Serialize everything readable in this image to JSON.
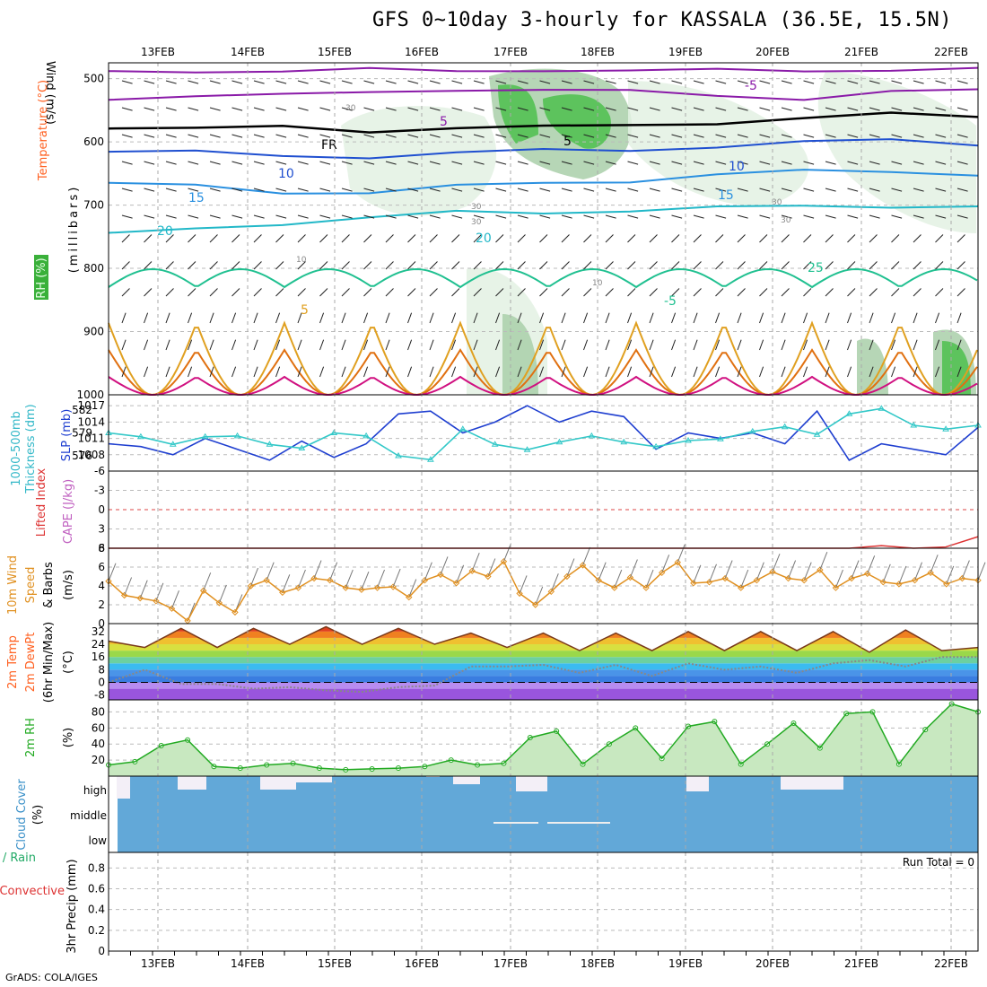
{
  "title": "GFS 0~10day 3-hourly for KASSALA (36.5E, 15.5N)",
  "credit": "GrADS: COLA/IGES",
  "dates": [
    "13FEB",
    "14FEB",
    "15FEB",
    "16FEB",
    "17FEB",
    "18FEB",
    "19FEB",
    "20FEB",
    "21FEB",
    "22FEB"
  ],
  "colors": {
    "rh_light": "#e3f1e3",
    "rh_mid": "#a9cfa9",
    "rh_green": "#4dc04d",
    "slp": "#1f3fd0",
    "thick": "#33c8c8",
    "wind_speed": "#e09020",
    "temp_curve": "#7a3a1a",
    "rh2m": "#22aa22",
    "cloud": "#62a8d8",
    "lifted": "#dd3333"
  },
  "chart_data": [
    {
      "type": "contour",
      "panel": "upper-air",
      "ylabel": "(millibars)",
      "yticks": [
        500,
        600,
        700,
        800,
        900,
        1000
      ],
      "left_labels": [
        "Wind (m/s)",
        "Temperature (°C)",
        "RH (%)"
      ],
      "isotherm_labels": [
        "-5",
        "5",
        "FR",
        "5",
        "10",
        "10",
        "15",
        "15",
        "20",
        "20",
        "25"
      ],
      "rh_labels": [
        "30",
        "30",
        "30",
        "30",
        "10",
        "10",
        "30"
      ],
      "isotherms": [
        {
          "name": "-5",
          "level_p": [
            488,
            486,
            490,
            487,
            486,
            485,
            490,
            487,
            485,
            486,
            487
          ],
          "color": "#8a1aa8"
        },
        {
          "name": "5b",
          "level_p": [
            530,
            526,
            528,
            522,
            515,
            518,
            522,
            526,
            530,
            522,
            520
          ],
          "color": "#8a1aa8"
        },
        {
          "name": "FR",
          "level_p": [
            575,
            580,
            578,
            582,
            576,
            578,
            575,
            568,
            562,
            558,
            560
          ],
          "color": "#000000"
        },
        {
          "name": "5",
          "level_p": [
            615,
            618,
            622,
            622,
            618,
            615,
            612,
            606,
            602,
            598,
            602
          ],
          "color": "#1f4fd0"
        },
        {
          "name": "10",
          "level_p": [
            668,
            670,
            678,
            680,
            672,
            665,
            660,
            652,
            648,
            646,
            650
          ],
          "color": "#2a90e0"
        },
        {
          "name": "15",
          "level_p": [
            748,
            735,
            728,
            722,
            712,
            710,
            708,
            706,
            702,
            700,
            702
          ],
          "color": "#22b8c8"
        }
      ]
    },
    {
      "type": "line",
      "panel": "slp-thickness",
      "left_labels": [
        "1000-500mb",
        "Thickness (dm)"
      ],
      "right_labels": [
        "SLP (mb)"
      ],
      "y1ticks": [
        "576",
        "579",
        "582"
      ],
      "y2ticks": [
        "1008",
        "1011",
        "1014",
        "1017"
      ],
      "series": [
        {
          "name": "SLP",
          "y": [
            1010,
            1009.5,
            1008,
            1011,
            1009,
            1007,
            1010.5,
            1007.5,
            1010,
            1015.5,
            1016,
            1012,
            1014,
            1017,
            1014,
            1016,
            1015,
            1009,
            1012,
            1011,
            1012,
            1010,
            1016,
            1007,
            1010,
            1009,
            1008,
            1013
          ]
        },
        {
          "name": "Thickness",
          "y": [
            579,
            578.5,
            577.5,
            578.5,
            578.6,
            577.5,
            577,
            579,
            578.6,
            576,
            575.5,
            579.5,
            577.5,
            576.8,
            577.8,
            578.6,
            577.8,
            577.2,
            578,
            578.2,
            579.2,
            579.8,
            578.8,
            581.5,
            582.2,
            580,
            579.5,
            580
          ]
        }
      ]
    },
    {
      "type": "line",
      "panel": "instability",
      "left_labels": [
        "Lifted Index",
        "CAPE (J/kg)"
      ],
      "yticks": [
        "-6",
        "-3",
        "0",
        "3",
        "6"
      ],
      "series": [
        {
          "name": "Lifted Index",
          "y": [
            6,
            6,
            6,
            6,
            6,
            6,
            6,
            6,
            6,
            6,
            6,
            6,
            6,
            6,
            6,
            6,
            6,
            6,
            6,
            6,
            6,
            6,
            6,
            6,
            5.6,
            6,
            5.8,
            4.2
          ]
        }
      ]
    },
    {
      "type": "line",
      "panel": "10m-wind",
      "left_labels": [
        "10m Wind",
        "Speed",
        "& Barbs"
      ],
      "ylabel": "(m/s)",
      "yticks": [
        "0",
        "2",
        "4",
        "6",
        "8"
      ],
      "series": [
        {
          "name": "Speed",
          "y": [
            4.5,
            3,
            2.7,
            2.4,
            1.6,
            0.3,
            3.5,
            2.2,
            1.2,
            4,
            4.6,
            3.3,
            3.8,
            4.8,
            4.6,
            3.8,
            3.6,
            3.8,
            3.9,
            2.8,
            4.6,
            5.2,
            4.3,
            5.6,
            5,
            6.6,
            3.2,
            2,
            3.4,
            5,
            6.2,
            4.6,
            3.8,
            4.9,
            3.8,
            5.4,
            6.5,
            4.3,
            4.4,
            4.8,
            3.8,
            4.6,
            5.5,
            4.8,
            4.6,
            5.7,
            3.8,
            4.8,
            5.3,
            4.4,
            4.2,
            4.6,
            5.4,
            4.2,
            4.8,
            4.6
          ]
        }
      ]
    },
    {
      "type": "area",
      "panel": "2m-temperature",
      "left_labels": [
        "2m Temp",
        "2m DewPt",
        "(6hr Min/Max)"
      ],
      "ylabel": "(°C)",
      "yticks": [
        "-8",
        "0",
        "8",
        "16",
        "24",
        "32"
      ],
      "series": [
        {
          "name": "2m Temp",
          "y": [
            26,
            22,
            34,
            22,
            34,
            24,
            35,
            24,
            34,
            24,
            31,
            22,
            31,
            20,
            31,
            20,
            32,
            20,
            32,
            20,
            32,
            19,
            33,
            20,
            22
          ]
        },
        {
          "name": "2m DewPt",
          "y": [
            0,
            8,
            -1,
            -1,
            -4,
            -3,
            -5,
            -6,
            -3,
            -2,
            10,
            10,
            11,
            6,
            11,
            4,
            12,
            8,
            10,
            6,
            12,
            14,
            10,
            16,
            16
          ]
        }
      ]
    },
    {
      "type": "area",
      "panel": "2m-rh",
      "left_labels": [
        "2m RH"
      ],
      "ylabel": "(%)",
      "yticks": [
        "20",
        "40",
        "60",
        "80"
      ],
      "series": [
        {
          "name": "2m RH",
          "y": [
            14,
            18,
            38,
            45,
            12,
            10,
            14,
            16,
            10,
            8,
            9,
            10,
            12,
            20,
            14,
            16,
            48,
            56,
            15,
            40,
            60,
            22,
            62,
            68,
            15,
            40,
            66,
            35,
            78,
            80,
            15,
            58,
            90,
            80
          ]
        }
      ]
    },
    {
      "type": "bar",
      "panel": "cloud-cover",
      "left_labels": [
        "Cloud Cover",
        "(%)"
      ],
      "levels": [
        "high",
        "middle",
        "low"
      ],
      "note": "mostly clear, blue background"
    },
    {
      "type": "bar",
      "panel": "precip",
      "left_labels": [
        "Total / Rain",
        "Convective"
      ],
      "ylabel": "3hr Precip (mm)",
      "yticks": [
        "0",
        "0.2",
        "0.4",
        "0.6",
        "0.8"
      ],
      "run_total": "Run Total = 0"
    }
  ]
}
